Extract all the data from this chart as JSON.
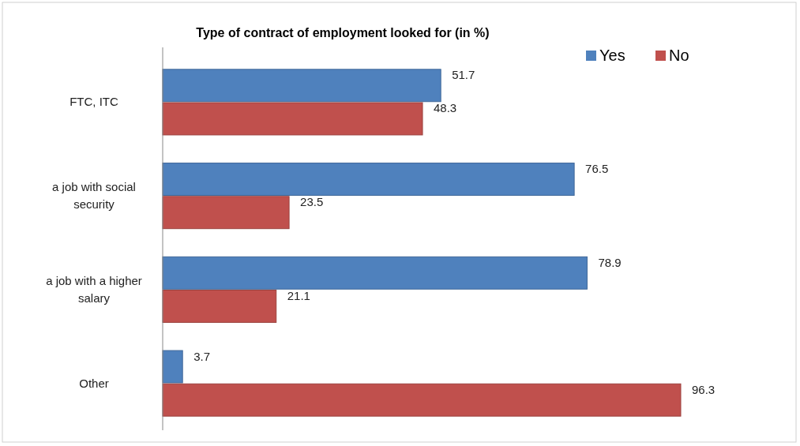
{
  "chart_data": {
    "type": "bar",
    "orientation": "horizontal",
    "title": "Type of contract of employment looked for (in %)",
    "categories": [
      "FTC, ITC",
      "a job with social security",
      "a job with a higher salary",
      "Other"
    ],
    "series": [
      {
        "name": "Yes",
        "color": "#4f81bd",
        "values": [
          51.7,
          76.5,
          78.9,
          3.7
        ]
      },
      {
        "name": "No",
        "color": "#c0504d",
        "values": [
          48.3,
          23.5,
          21.1,
          96.3
        ]
      }
    ],
    "data_labels": true,
    "legend": "top right",
    "grid": false
  }
}
